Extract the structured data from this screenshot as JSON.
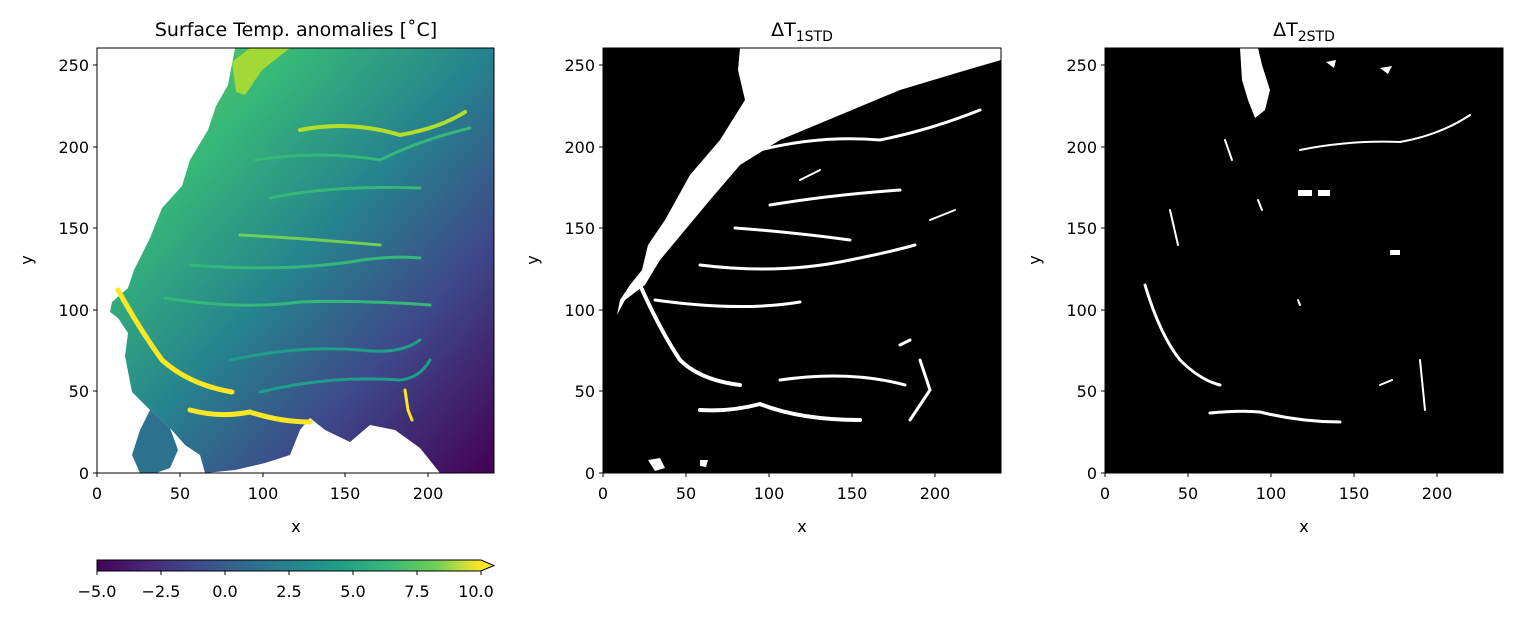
{
  "chart_data": [
    {
      "type": "heatmap",
      "title": "Surface Temp. anomalies [˚C]",
      "xlabel": "x",
      "ylabel": "y",
      "xlim": [
        0,
        240
      ],
      "ylim": [
        0,
        260
      ],
      "xticks": [
        0,
        50,
        100,
        150,
        200
      ],
      "yticks": [
        0,
        50,
        100,
        150,
        200,
        250
      ],
      "colormap": "viridis",
      "colorbar": {
        "orientation": "horizontal",
        "placement": "bottom",
        "range": [
          -5.0,
          10.0
        ],
        "ticks": [
          -5.0,
          -2.5,
          0.0,
          2.5,
          5.0,
          7.5,
          10.0
        ],
        "tick_labels": [
          "−5.0",
          "−2.5",
          "0.0",
          "2.5",
          "5.0",
          "7.5",
          "10.0"
        ],
        "extend": "max"
      },
      "nan_color": "#ffffff"
    },
    {
      "type": "heatmap",
      "title_main": "ΔT",
      "title_sub": "1STD",
      "xlabel": "x",
      "ylabel": "y",
      "xlim": [
        0,
        240
      ],
      "ylim": [
        0,
        260
      ],
      "xticks": [
        0,
        50,
        100,
        150,
        200
      ],
      "yticks": [
        0,
        50,
        100,
        150,
        200,
        250
      ],
      "colormap": "binary mask (black / white)"
    },
    {
      "type": "heatmap",
      "title_main": "ΔT",
      "title_sub": "2STD",
      "xlabel": "x",
      "ylabel": "y",
      "xlim": [
        0,
        240
      ],
      "ylim": [
        0,
        260
      ],
      "xticks": [
        0,
        50,
        100,
        150,
        200
      ],
      "yticks": [
        0,
        50,
        100,
        150,
        200,
        250
      ],
      "colormap": "binary mask (black / white)"
    }
  ],
  "colors": {
    "viridis_low": "#440154",
    "viridis_mid": "#21918c",
    "viridis_high": "#fde725",
    "mask_background": "#000000",
    "mask_foreground": "#ffffff"
  }
}
